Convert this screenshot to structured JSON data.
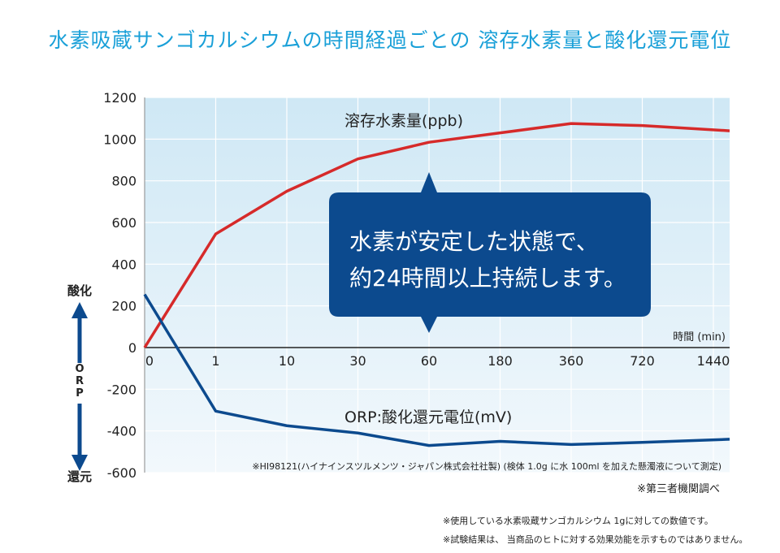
{
  "page_title": "水素吸蔵サンゴカルシウムの時間経過ごとの 溶存水素量と酸化還元電位",
  "callout": {
    "line1": "水素が安定した状態で、",
    "line2": "約24時間以上持続します。"
  },
  "orp_axis": {
    "top_label": "酸化",
    "middle_label": "ORP",
    "bottom_label": "還元"
  },
  "source_note": "※HI98121(ハイナインスツルメンツ・ジャパン株式会社社製) (検体 1.0g に水 100ml を加えた懸濁液について測定)",
  "third_party_note": "※第三者機関調べ",
  "footnotes": [
    "※使用している水素吸蔵サンゴカルシウム 1gに対しての数値です。",
    "※試験結果は、 当商品のヒトに対する効果効能を示すものではありません。"
  ],
  "colors": {
    "title": "#1aa0d8",
    "hydrogen_line": "#d62a2a",
    "orp_line": "#0c4a8e",
    "callout_box": "#0c4a8e",
    "plot_bg_top": "#cfe8f5",
    "plot_bg_bottom": "#f2f8fc"
  },
  "chart_data": {
    "type": "line",
    "title": "",
    "xlabel": "時間 (min)",
    "ylabel": "",
    "x_scale": "categorical",
    "categories": [
      "0",
      "1",
      "10",
      "30",
      "60",
      "180",
      "360",
      "720",
      "1440"
    ],
    "ylim": [
      -600,
      1200
    ],
    "yticks": [
      "1200",
      "1000",
      "800",
      "600",
      "400",
      "200",
      "0",
      "-200",
      "-400",
      "-600"
    ],
    "grid": true,
    "series": [
      {
        "name": "溶存水素量(ppb)",
        "values": [
          0,
          545,
          750,
          905,
          985,
          1030,
          1075,
          1065,
          1040
        ],
        "color": "#d62a2a"
      },
      {
        "name": "ORP:酸化還元電位(mV)",
        "values": [
          255,
          -305,
          -375,
          -410,
          -470,
          -450,
          -465,
          -455,
          -440
        ],
        "color": "#0c4a8e"
      }
    ]
  }
}
